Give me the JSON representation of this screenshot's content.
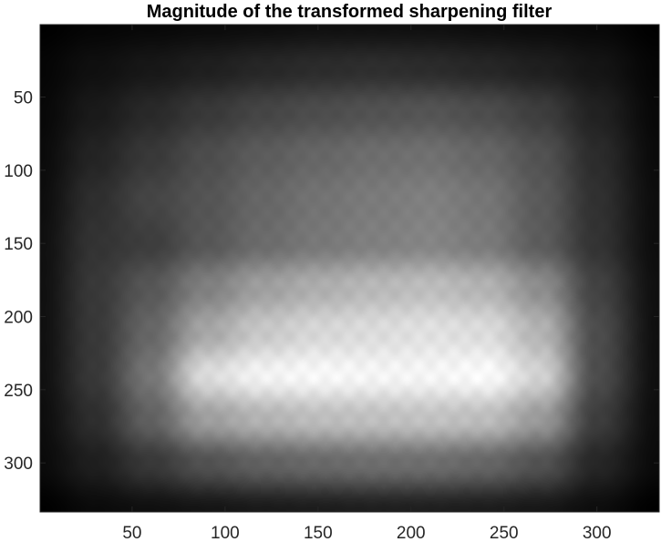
{
  "chart_data": {
    "type": "heatmap",
    "title": "Magnitude of the transformed sharpening filter",
    "xlabel": "",
    "ylabel": "",
    "xlim": [
      0.5,
      333.5
    ],
    "ylim": [
      0.5,
      333.5
    ],
    "y_direction": "reversed",
    "colormap": "gray",
    "grid": false,
    "x_ticks": [
      50,
      100,
      150,
      200,
      250,
      300
    ],
    "y_ticks": [
      50,
      100,
      150,
      200,
      250,
      300
    ],
    "x_tick_labels": [
      "50",
      "100",
      "150",
      "200",
      "250",
      "300"
    ],
    "y_tick_labels": [
      "50",
      "100",
      "150",
      "200",
      "250",
      "300"
    ],
    "grid_x": [
      0,
      30,
      60,
      90,
      120,
      150,
      180,
      210,
      240,
      270,
      300,
      333
    ],
    "grid_y": [
      0,
      30,
      60,
      90,
      120,
      150,
      180,
      210,
      240,
      270,
      300,
      333
    ],
    "intensity": [
      [
        0.0,
        0.02,
        0.03,
        0.04,
        0.05,
        0.06,
        0.06,
        0.06,
        0.05,
        0.04,
        0.03,
        0.0
      ],
      [
        0.02,
        0.06,
        0.09,
        0.12,
        0.15,
        0.17,
        0.18,
        0.17,
        0.15,
        0.12,
        0.08,
        0.02
      ],
      [
        0.03,
        0.1,
        0.16,
        0.22,
        0.27,
        0.3,
        0.32,
        0.33,
        0.3,
        0.24,
        0.13,
        0.03
      ],
      [
        0.04,
        0.14,
        0.22,
        0.3,
        0.36,
        0.4,
        0.43,
        0.44,
        0.4,
        0.32,
        0.17,
        0.04
      ],
      [
        0.05,
        0.18,
        0.27,
        0.33,
        0.4,
        0.45,
        0.48,
        0.5,
        0.46,
        0.35,
        0.19,
        0.05
      ],
      [
        0.06,
        0.2,
        0.24,
        0.34,
        0.42,
        0.47,
        0.5,
        0.52,
        0.48,
        0.36,
        0.2,
        0.05
      ],
      [
        0.06,
        0.22,
        0.34,
        0.5,
        0.62,
        0.68,
        0.72,
        0.74,
        0.7,
        0.55,
        0.26,
        0.06
      ],
      [
        0.06,
        0.22,
        0.4,
        0.65,
        0.78,
        0.84,
        0.86,
        0.88,
        0.86,
        0.7,
        0.3,
        0.06
      ],
      [
        0.06,
        0.22,
        0.46,
        0.86,
        0.95,
        0.97,
        0.96,
        0.96,
        0.98,
        0.82,
        0.3,
        0.06
      ],
      [
        0.05,
        0.18,
        0.38,
        0.62,
        0.7,
        0.74,
        0.75,
        0.76,
        0.74,
        0.6,
        0.24,
        0.05
      ],
      [
        0.04,
        0.12,
        0.22,
        0.32,
        0.38,
        0.41,
        0.43,
        0.43,
        0.4,
        0.32,
        0.15,
        0.04
      ],
      [
        0.0,
        0.04,
        0.06,
        0.08,
        0.1,
        0.11,
        0.12,
        0.12,
        0.11,
        0.09,
        0.05,
        0.0
      ]
    ]
  }
}
